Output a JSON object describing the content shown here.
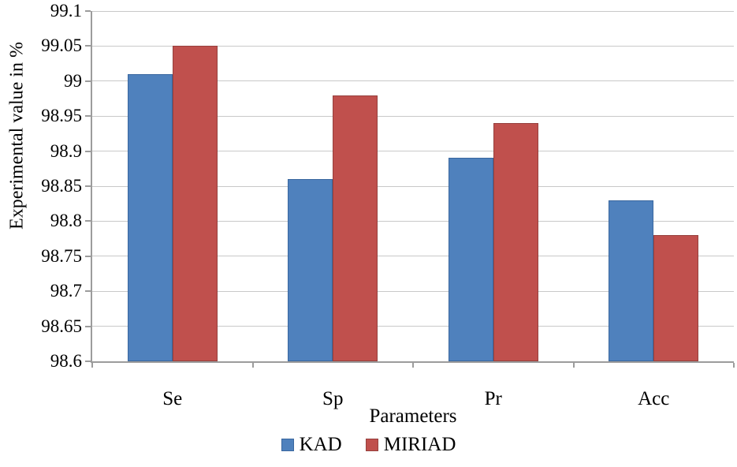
{
  "chart_data": {
    "type": "bar",
    "title": "",
    "ylabel": "Experimental value in %",
    "xlabel": "Parameters",
    "categories": [
      "Se",
      "Sp",
      "Pr",
      "Acc"
    ],
    "series": [
      {
        "name": "KAD",
        "color": "#4F81BD",
        "border_color": "#3A679F",
        "values": [
          99.01,
          98.86,
          98.89,
          98.83
        ]
      },
      {
        "name": "MIRIAD",
        "color": "#C0504D",
        "border_color": "#96403D",
        "values": [
          99.05,
          98.98,
          98.94,
          98.78
        ]
      }
    ],
    "ylim": [
      98.6,
      99.1
    ],
    "ytick_step": 0.05,
    "yticks": [
      "99.1",
      "99.05",
      "99",
      "98.95",
      "98.9",
      "98.85",
      "98.8",
      "98.75",
      "98.7",
      "98.65",
      "98.6"
    ],
    "grid": "horizontal",
    "legend_position": "bottom",
    "colors": {
      "background": "#FFFFFF",
      "gridline": "#C9C9C9",
      "axis": "#9C9C9C",
      "text": "#000000"
    }
  }
}
